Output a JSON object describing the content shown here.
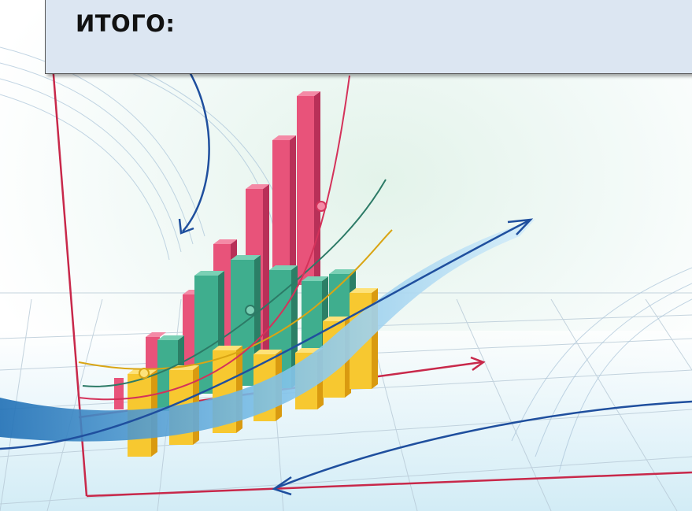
{
  "header": {
    "title": "ИТОГО:"
  }
}
